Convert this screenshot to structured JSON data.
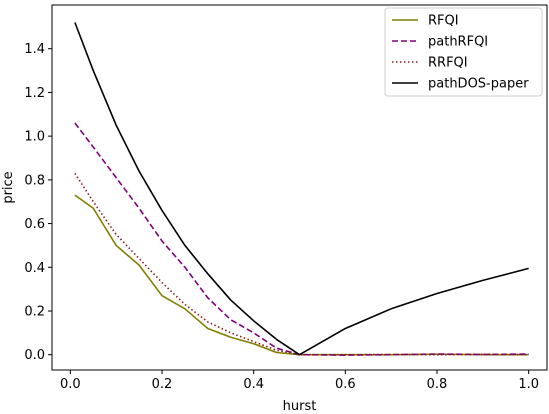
{
  "chart_data": {
    "type": "line",
    "title": "",
    "xlabel": "hurst",
    "ylabel": "price",
    "xlim": [
      -0.04,
      1.04
    ],
    "ylim": [
      -0.07,
      1.6
    ],
    "xticks": [
      0.0,
      0.2,
      0.4,
      0.6,
      0.8,
      1.0
    ],
    "xtick_labels": [
      "0.0",
      "0.2",
      "0.4",
      "0.6",
      "0.8",
      "1.0"
    ],
    "yticks": [
      0.0,
      0.2,
      0.4,
      0.6,
      0.8,
      1.0,
      1.2,
      1.4
    ],
    "ytick_labels": [
      "0.0",
      "0.2",
      "0.4",
      "0.6",
      "0.8",
      "1.0",
      "1.2",
      "1.4"
    ],
    "grid": false,
    "legend_position": "top-right",
    "series": [
      {
        "name": "RFQI",
        "color": "#808000",
        "dash": "solid",
        "x": [
          0.01,
          0.05,
          0.1,
          0.15,
          0.2,
          0.25,
          0.3,
          0.35,
          0.4,
          0.45,
          0.5,
          0.6,
          0.7,
          0.8,
          0.9,
          1.0
        ],
        "y": [
          0.73,
          0.67,
          0.5,
          0.41,
          0.27,
          0.21,
          0.12,
          0.08,
          0.05,
          0.01,
          0.0,
          0.0,
          0.0,
          0.002,
          0.0,
          0.0
        ]
      },
      {
        "name": "pathRFQI",
        "color": "#800080",
        "dash": "dashed",
        "x": [
          0.01,
          0.05,
          0.1,
          0.15,
          0.2,
          0.25,
          0.3,
          0.35,
          0.4,
          0.45,
          0.5,
          0.6,
          0.7,
          0.8,
          0.9,
          1.0
        ],
        "y": [
          1.06,
          0.95,
          0.81,
          0.67,
          0.52,
          0.4,
          0.26,
          0.16,
          0.1,
          0.03,
          0.0,
          -0.002,
          0.0,
          0.003,
          0.001,
          0.003
        ]
      },
      {
        "name": "RRFQI",
        "color": "#8b1a1a",
        "dash": "dotted",
        "x": [
          0.01,
          0.05,
          0.1,
          0.15,
          0.2,
          0.25,
          0.3,
          0.35,
          0.4,
          0.45,
          0.5,
          0.6,
          0.7,
          0.8,
          0.9,
          1.0
        ],
        "y": [
          0.83,
          0.7,
          0.55,
          0.44,
          0.33,
          0.23,
          0.15,
          0.1,
          0.06,
          0.02,
          0.0,
          0.0,
          0.001,
          0.0,
          0.002,
          0.0
        ]
      },
      {
        "name": "pathDOS-paper",
        "color": "#000000",
        "dash": "solid",
        "x": [
          0.01,
          0.05,
          0.1,
          0.15,
          0.2,
          0.25,
          0.3,
          0.35,
          0.4,
          0.45,
          0.5,
          0.6,
          0.7,
          0.8,
          0.9,
          1.0
        ],
        "y": [
          1.52,
          1.3,
          1.05,
          0.84,
          0.66,
          0.5,
          0.37,
          0.25,
          0.155,
          0.07,
          0.0,
          0.12,
          0.21,
          0.28,
          0.34,
          0.395
        ]
      }
    ]
  }
}
